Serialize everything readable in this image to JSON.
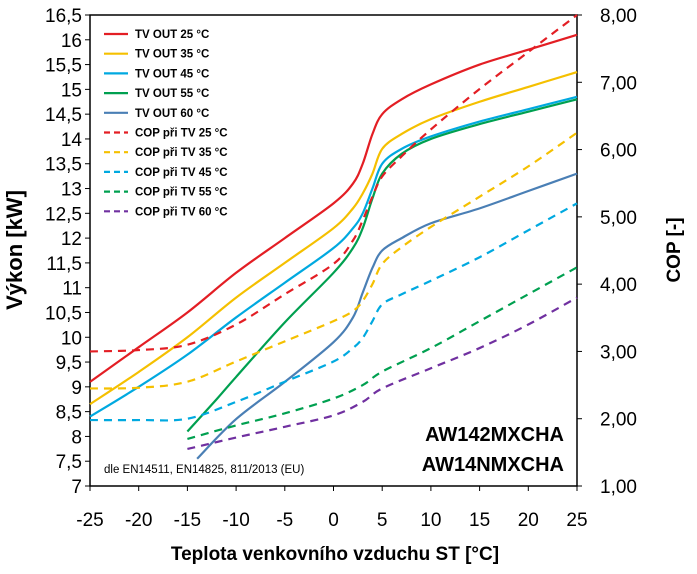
{
  "chart_data": {
    "type": "line",
    "x_label": "Teplota venkovního vzduchu ST [°C]",
    "y_left_label": "Výkon [kW]",
    "y_right_label": "COP [-]",
    "x_range": [
      -25,
      25
    ],
    "y_left_range": [
      7,
      16.5
    ],
    "y_right_range": [
      1,
      8
    ],
    "x_ticks": [
      "-25",
      "-20",
      "-15",
      "-10",
      "-5",
      "0",
      "5",
      "10",
      "15",
      "20",
      "25"
    ],
    "y_left_ticks": [
      "7",
      "7,5",
      "8",
      "8,5",
      "9",
      "9,5",
      "10",
      "10,5",
      "11",
      "11,5",
      "12",
      "12,5",
      "13",
      "13,5",
      "14",
      "14,5",
      "15",
      "15,5",
      "16",
      "16,5"
    ],
    "y_right_ticks": [
      "1,00",
      "2,00",
      "3,00",
      "4,00",
      "5,00",
      "6,00",
      "7,00",
      "8,00"
    ],
    "grid": false,
    "legend_position": "top-left",
    "model_labels": [
      "AW142MXCHA",
      "AW14NMXCHA"
    ],
    "note": "dle EN14511, EN14825, 811/2013 (EU)",
    "series": [
      {
        "name": "TV OUT 25 °C",
        "axis": "left",
        "style": "solid",
        "color": "#e31e24",
        "points": [
          [
            -25,
            9.1
          ],
          [
            -20,
            9.8
          ],
          [
            -15,
            10.5
          ],
          [
            -10,
            11.3
          ],
          [
            -5,
            12.0
          ],
          [
            0,
            12.7
          ],
          [
            2,
            13.1
          ],
          [
            3,
            13.5
          ],
          [
            4,
            14.1
          ],
          [
            5,
            14.5
          ],
          [
            7,
            14.8
          ],
          [
            10,
            15.1
          ],
          [
            15,
            15.5
          ],
          [
            20,
            15.8
          ],
          [
            25,
            16.1
          ]
        ]
      },
      {
        "name": "TV OUT 35 °C",
        "axis": "left",
        "style": "solid",
        "color": "#f5c000",
        "points": [
          [
            -25,
            8.65
          ],
          [
            -20,
            9.3
          ],
          [
            -15,
            10.0
          ],
          [
            -10,
            10.8
          ],
          [
            -5,
            11.5
          ],
          [
            0,
            12.2
          ],
          [
            2,
            12.6
          ],
          [
            3,
            12.9
          ],
          [
            4,
            13.3
          ],
          [
            5,
            13.8
          ],
          [
            7,
            14.1
          ],
          [
            10,
            14.4
          ],
          [
            15,
            14.75
          ],
          [
            20,
            15.05
          ],
          [
            25,
            15.35
          ]
        ]
      },
      {
        "name": "TV OUT 45 °C",
        "axis": "left",
        "style": "solid",
        "color": "#00a9e0",
        "points": [
          [
            -25,
            8.4
          ],
          [
            -20,
            9.0
          ],
          [
            -15,
            9.65
          ],
          [
            -10,
            10.4
          ],
          [
            -5,
            11.1
          ],
          [
            0,
            11.8
          ],
          [
            2,
            12.2
          ],
          [
            3,
            12.5
          ],
          [
            4,
            13.0
          ],
          [
            5,
            13.5
          ],
          [
            7,
            13.8
          ],
          [
            10,
            14.05
          ],
          [
            15,
            14.35
          ],
          [
            20,
            14.6
          ],
          [
            25,
            14.85
          ]
        ]
      },
      {
        "name": "TV OUT 55 °C",
        "axis": "left",
        "style": "solid",
        "color": "#00a050",
        "points": [
          [
            -15,
            8.1
          ],
          [
            -12,
            8.75
          ],
          [
            -10,
            9.2
          ],
          [
            -5,
            10.3
          ],
          [
            0,
            11.3
          ],
          [
            2,
            11.8
          ],
          [
            3,
            12.2
          ],
          [
            4,
            12.8
          ],
          [
            5,
            13.3
          ],
          [
            7,
            13.7
          ],
          [
            10,
            14.0
          ],
          [
            15,
            14.3
          ],
          [
            20,
            14.55
          ],
          [
            25,
            14.8
          ]
        ]
      },
      {
        "name": "TV OUT 60 °C",
        "axis": "left",
        "style": "solid",
        "color": "#4a7fb5",
        "points": [
          [
            -14,
            7.55
          ],
          [
            -10,
            8.35
          ],
          [
            -5,
            9.1
          ],
          [
            0,
            9.9
          ],
          [
            2,
            10.4
          ],
          [
            3,
            10.9
          ],
          [
            4,
            11.4
          ],
          [
            5,
            11.75
          ],
          [
            7,
            12.0
          ],
          [
            10,
            12.3
          ],
          [
            15,
            12.6
          ],
          [
            20,
            12.95
          ],
          [
            25,
            13.3
          ]
        ]
      },
      {
        "name": "COP při TV 25 °C",
        "axis": "right",
        "style": "dashed",
        "color": "#e31e24",
        "points": [
          [
            -25,
            3.0
          ],
          [
            -20,
            3.02
          ],
          [
            -15,
            3.1
          ],
          [
            -10,
            3.4
          ],
          [
            -5,
            3.85
          ],
          [
            0,
            4.3
          ],
          [
            2,
            4.65
          ],
          [
            3,
            4.95
          ],
          [
            4,
            5.3
          ],
          [
            5,
            5.6
          ],
          [
            7,
            5.9
          ],
          [
            10,
            6.3
          ],
          [
            15,
            6.9
          ],
          [
            20,
            7.45
          ],
          [
            25,
            8.0
          ]
        ]
      },
      {
        "name": "COP při TV 35 °C",
        "axis": "right",
        "style": "dashed",
        "color": "#f5c000",
        "points": [
          [
            -25,
            2.45
          ],
          [
            -20,
            2.46
          ],
          [
            -15,
            2.55
          ],
          [
            -10,
            2.85
          ],
          [
            -5,
            3.15
          ],
          [
            0,
            3.45
          ],
          [
            2,
            3.6
          ],
          [
            3,
            3.75
          ],
          [
            4,
            4.0
          ],
          [
            5,
            4.3
          ],
          [
            7,
            4.55
          ],
          [
            10,
            4.85
          ],
          [
            15,
            5.3
          ],
          [
            20,
            5.75
          ],
          [
            25,
            6.25
          ]
        ]
      },
      {
        "name": "COP při TV 45 °C",
        "axis": "right",
        "style": "dashed",
        "color": "#00a9e0",
        "points": [
          [
            -25,
            1.98
          ],
          [
            -20,
            1.98
          ],
          [
            -15,
            2.0
          ],
          [
            -10,
            2.25
          ],
          [
            -5,
            2.55
          ],
          [
            0,
            2.85
          ],
          [
            2,
            3.05
          ],
          [
            3,
            3.2
          ],
          [
            4,
            3.45
          ],
          [
            5,
            3.7
          ],
          [
            7,
            3.85
          ],
          [
            10,
            4.05
          ],
          [
            15,
            4.4
          ],
          [
            20,
            4.8
          ],
          [
            25,
            5.2
          ]
        ]
      },
      {
        "name": "COP při TV 55 °C",
        "axis": "right",
        "style": "dashed",
        "color": "#00a050",
        "points": [
          [
            -15,
            1.7
          ],
          [
            -10,
            1.9
          ],
          [
            -5,
            2.08
          ],
          [
            0,
            2.3
          ],
          [
            3,
            2.5
          ],
          [
            5,
            2.7
          ],
          [
            10,
            3.05
          ],
          [
            15,
            3.45
          ],
          [
            20,
            3.85
          ],
          [
            25,
            4.25
          ]
        ]
      },
      {
        "name": "COP při TV 60 °C",
        "axis": "right",
        "style": "dashed",
        "color": "#7030a0",
        "points": [
          [
            -15,
            1.55
          ],
          [
            -10,
            1.72
          ],
          [
            -5,
            1.88
          ],
          [
            0,
            2.05
          ],
          [
            3,
            2.25
          ],
          [
            5,
            2.45
          ],
          [
            10,
            2.75
          ],
          [
            15,
            3.05
          ],
          [
            20,
            3.4
          ],
          [
            25,
            3.8
          ]
        ]
      }
    ]
  }
}
